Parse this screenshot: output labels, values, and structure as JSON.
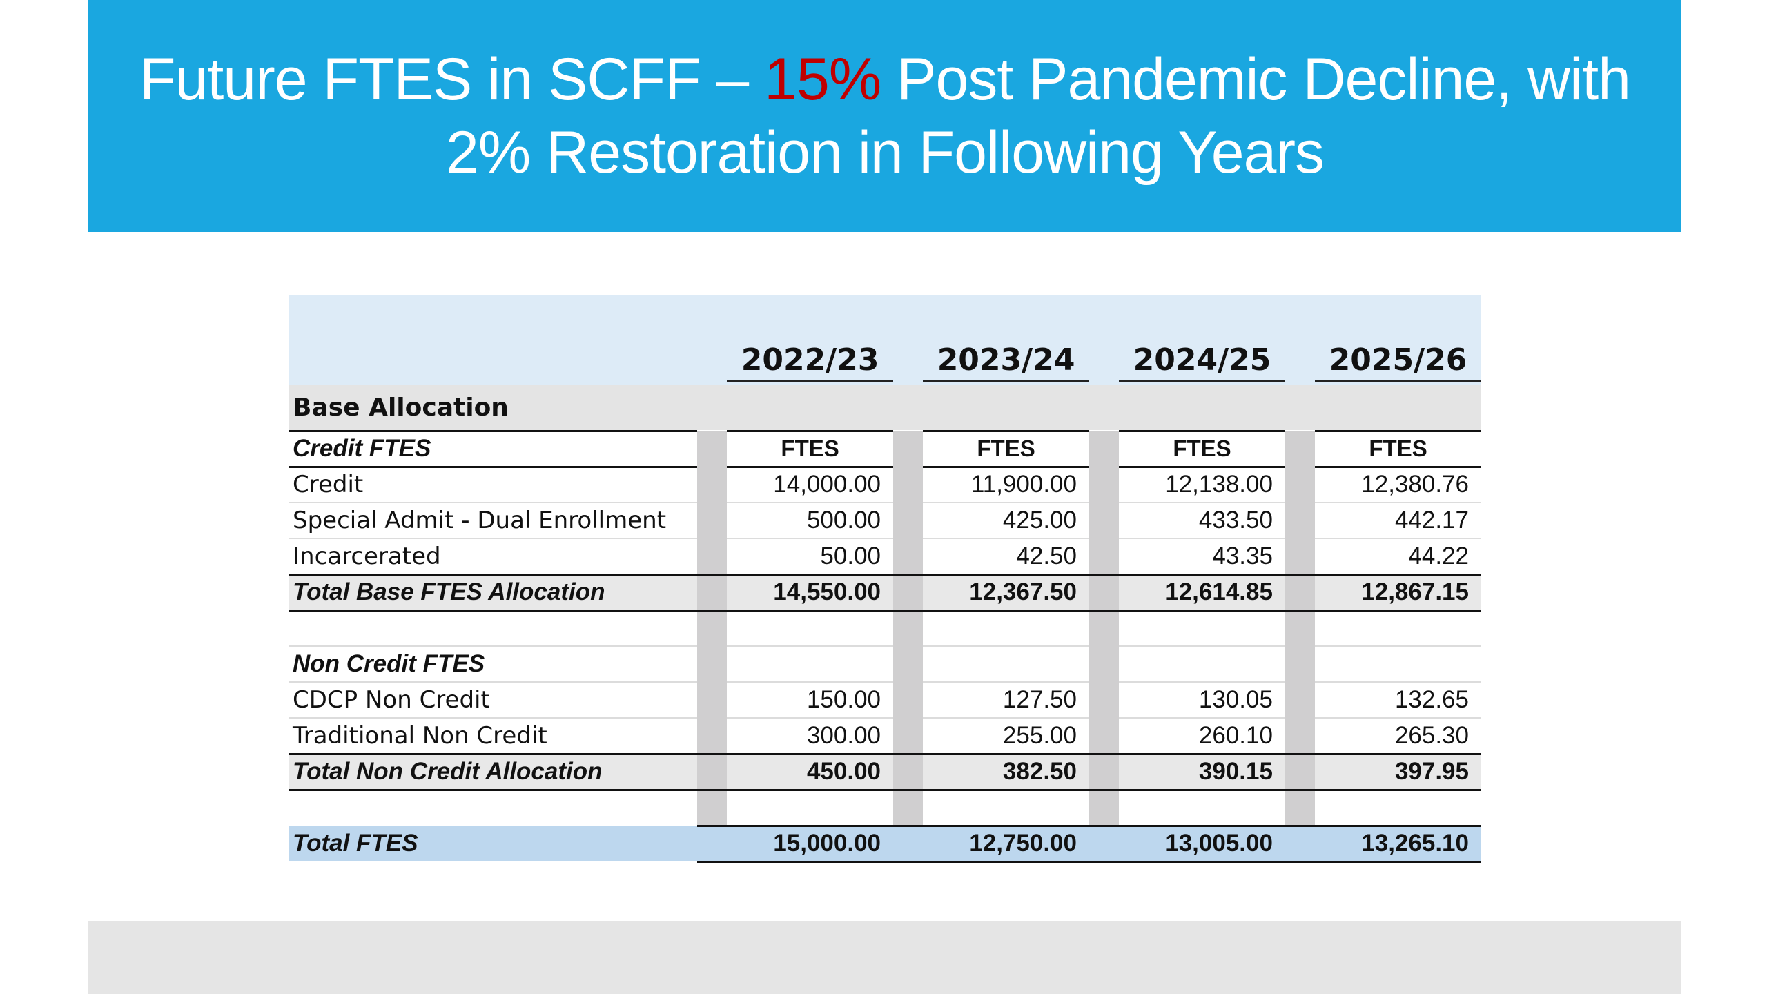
{
  "title": {
    "line1_before": "Future FTES in SCFF – ",
    "line1_highlight": "15%",
    "line1_after": " Post Pandemic Decline, with",
    "line2": "2% Restoration in Following Years"
  },
  "colors": {
    "banner": "#1aa7e0",
    "highlight": "#c00000",
    "header_fill": "#ddebf7",
    "total_fill": "#bdd7ee"
  },
  "table": {
    "years": [
      "2022/23",
      "2023/24",
      "2024/25",
      "2025/26"
    ],
    "section_title": "Base Allocation",
    "credit_header": "Credit FTES",
    "column_unit": "FTES",
    "credit_rows": [
      {
        "label": "Credit",
        "values": [
          "14,000.00",
          "11,900.00",
          "12,138.00",
          "12,380.76"
        ]
      },
      {
        "label": "Special Admit - Dual Enrollment",
        "values": [
          "500.00",
          "425.00",
          "433.50",
          "442.17"
        ]
      },
      {
        "label": "Incarcerated",
        "values": [
          "50.00",
          "42.50",
          "43.35",
          "44.22"
        ]
      }
    ],
    "credit_total": {
      "label": "Total Base FTES Allocation",
      "values": [
        "14,550.00",
        "12,367.50",
        "12,614.85",
        "12,867.15"
      ]
    },
    "noncredit_header": "Non Credit FTES",
    "noncredit_rows": [
      {
        "label": "CDCP Non Credit",
        "values": [
          "150.00",
          "127.50",
          "130.05",
          "132.65"
        ]
      },
      {
        "label": "Traditional Non Credit",
        "values": [
          "300.00",
          "255.00",
          "260.10",
          "265.30"
        ]
      }
    ],
    "noncredit_total": {
      "label": "Total Non Credit Allocation",
      "values": [
        "450.00",
        "382.50",
        "390.15",
        "397.95"
      ]
    },
    "grand_total": {
      "label": "Total FTES",
      "values": [
        "15,000.00",
        "12,750.00",
        "13,005.00",
        "13,265.10"
      ]
    }
  }
}
